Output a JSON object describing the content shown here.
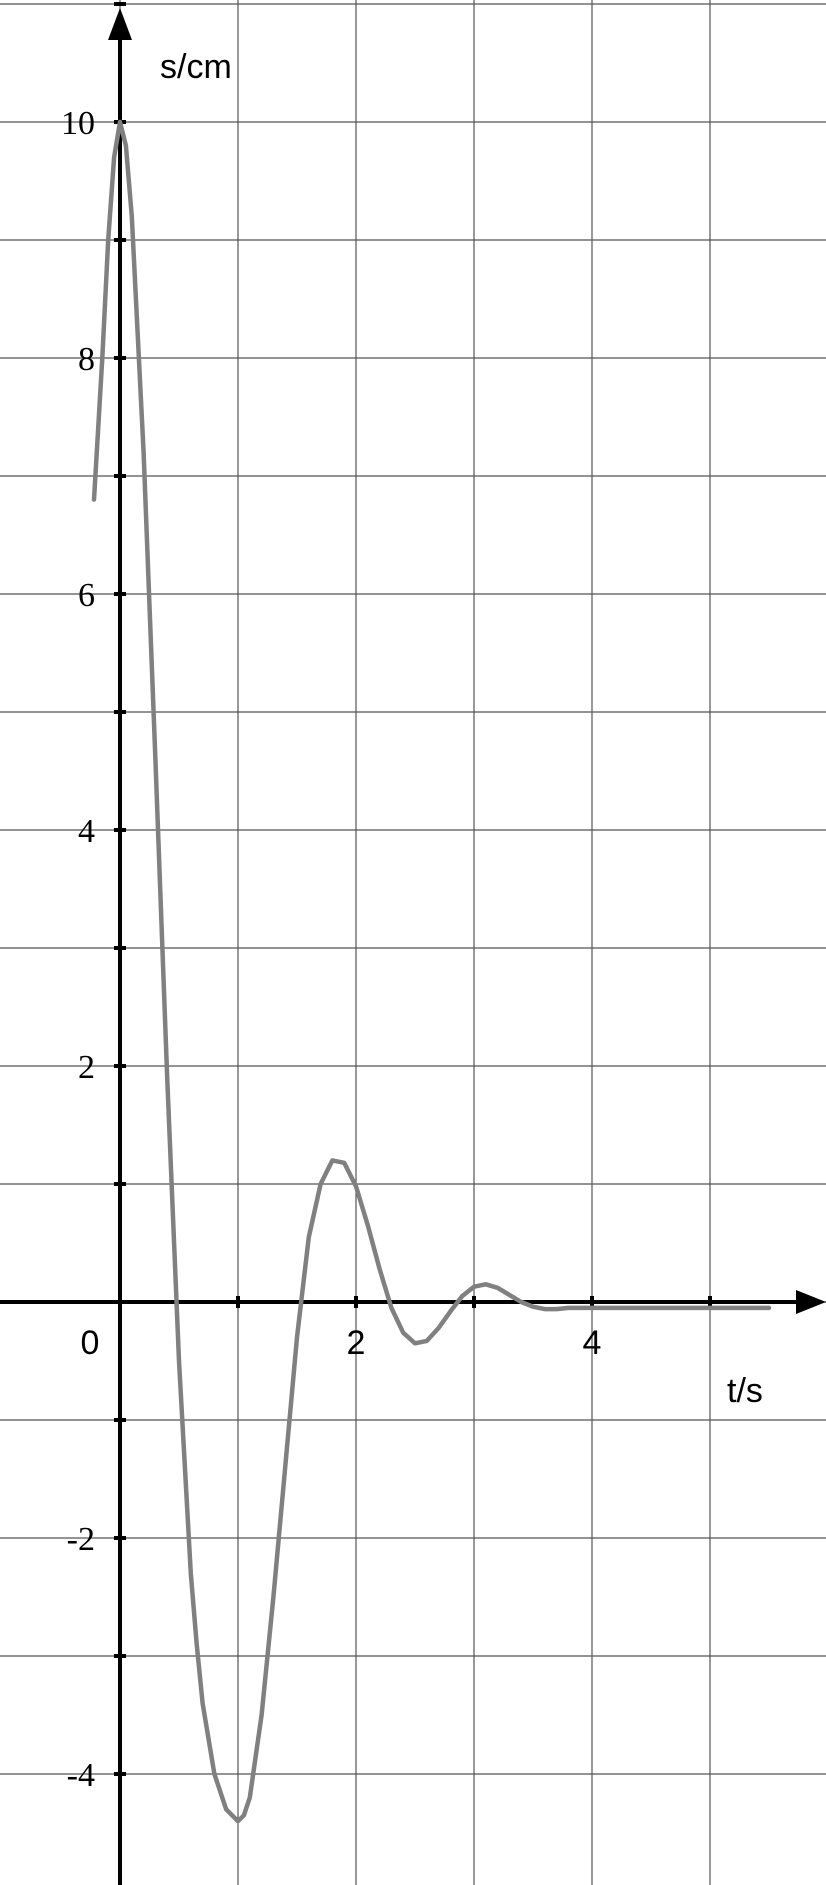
{
  "chart_data": {
    "type": "line",
    "title": "",
    "xlabel": "t/s",
    "ylabel": "s/cm",
    "xlim": [
      -0.5,
      5.9
    ],
    "ylim": [
      -4.6,
      11.0
    ],
    "grid": true,
    "x_ticks": [
      {
        "value": 0,
        "label": "0"
      },
      {
        "value": 2,
        "label": "2"
      },
      {
        "value": 4,
        "label": "4"
      }
    ],
    "y_ticks": [
      {
        "value": 10,
        "label": "10"
      },
      {
        "value": 8,
        "label": "8"
      },
      {
        "value": 6,
        "label": "6"
      },
      {
        "value": 4,
        "label": "4"
      },
      {
        "value": 2,
        "label": "2"
      },
      {
        "value": -2,
        "label": "-2"
      },
      {
        "value": -4,
        "label": "-4"
      }
    ],
    "series": [
      {
        "color": "#808080",
        "x": [
          -0.22,
          -0.15,
          -0.1,
          -0.05,
          0,
          0.05,
          0.1,
          0.2,
          0.3,
          0.4,
          0.5,
          0.6,
          0.65,
          0.7,
          0.8,
          0.9,
          1.0,
          1.05,
          1.1,
          1.2,
          1.3,
          1.4,
          1.5,
          1.6,
          1.7,
          1.8,
          1.9,
          2.0,
          2.1,
          2.2,
          2.3,
          2.4,
          2.5,
          2.6,
          2.7,
          2.8,
          2.9,
          3.0,
          3.1,
          3.2,
          3.3,
          3.4,
          3.5,
          3.6,
          3.7,
          3.8,
          3.9,
          4.0,
          4.1,
          4.2,
          4.3,
          4.4,
          4.5,
          4.6,
          4.7,
          4.8,
          4.9,
          5.0,
          5.1,
          5.2,
          5.3,
          5.4,
          5.5
        ],
        "y": [
          6.8,
          8.0,
          9.0,
          9.7,
          10.0,
          9.8,
          9.2,
          7.2,
          4.6,
          1.9,
          -0.5,
          -2.3,
          -2.9,
          -3.4,
          -4.0,
          -4.3,
          -4.4,
          -4.35,
          -4.2,
          -3.5,
          -2.5,
          -1.4,
          -0.3,
          0.55,
          1.0,
          1.2,
          1.18,
          0.98,
          0.65,
          0.28,
          -0.05,
          -0.26,
          -0.35,
          -0.33,
          -0.22,
          -0.08,
          0.05,
          0.13,
          0.15,
          0.12,
          0.06,
          0.0,
          -0.04,
          -0.06,
          -0.06,
          -0.05,
          -0.05,
          -0.05,
          -0.05,
          -0.05,
          -0.05,
          -0.05,
          -0.05,
          -0.05,
          -0.05,
          -0.05,
          -0.05,
          -0.05,
          -0.05,
          -0.05,
          -0.05,
          -0.05,
          -0.05
        ]
      }
    ]
  }
}
